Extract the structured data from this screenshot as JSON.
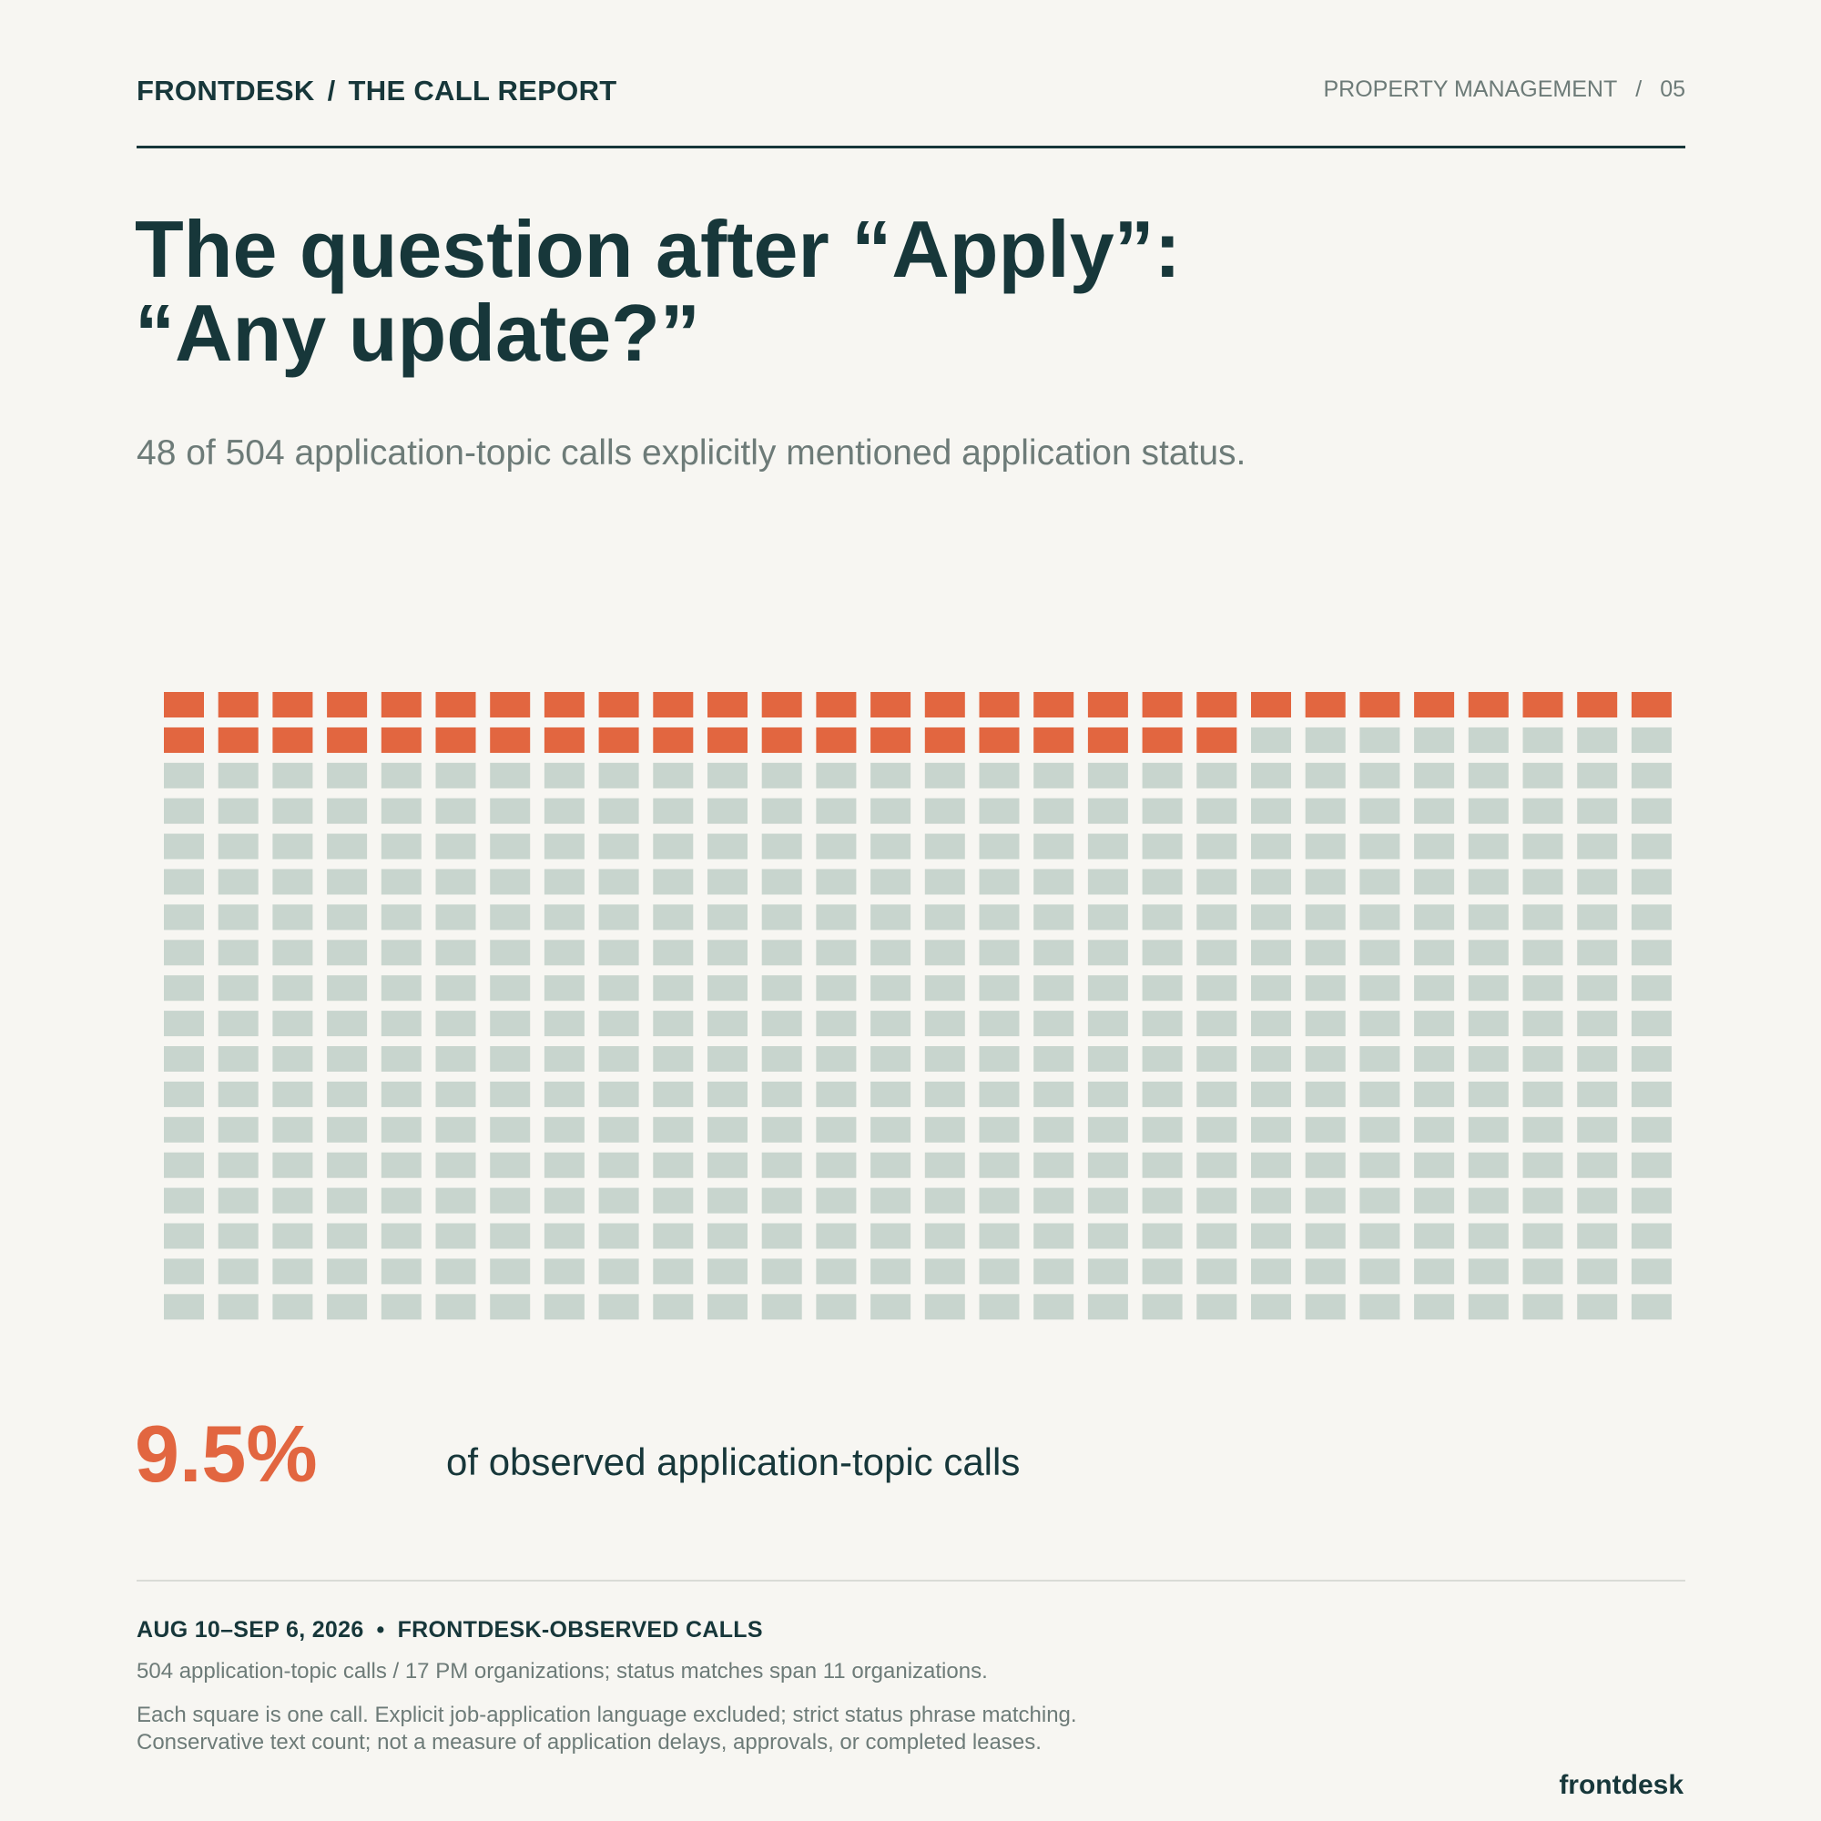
{
  "header": {
    "brand": "FRONTDESK",
    "report": "THE CALL REPORT",
    "section": "PROPERTY MANAGEMENT",
    "page_number": "05"
  },
  "title": {
    "line1": "The question after “Apply”:",
    "line2": "“Any update?”"
  },
  "subtitle": "48 of 504 application-topic calls explicitly mentioned application status.",
  "chart_data": {
    "type": "waffle",
    "total": 504,
    "highlighted": 48,
    "columns": 28,
    "rows": 18,
    "highlight_color": "#e26640",
    "base_color": "#c8d5ce"
  },
  "stat": {
    "percent": "9.5%",
    "caption": "of observed application-topic calls"
  },
  "footer": {
    "date_range": "AUG 10–SEP 6, 2026",
    "source": "FRONTDESK-OBSERVED CALLS",
    "line1": "504 application-topic calls / 17 PM organizations; status matches span 11 organizations.",
    "line2": "Each square is one call. Explicit job-application language excluded; strict status phrase matching.",
    "line3": "Conservative text count; not a measure of application delays, approvals, or completed leases.",
    "brand": "frontdesk"
  }
}
